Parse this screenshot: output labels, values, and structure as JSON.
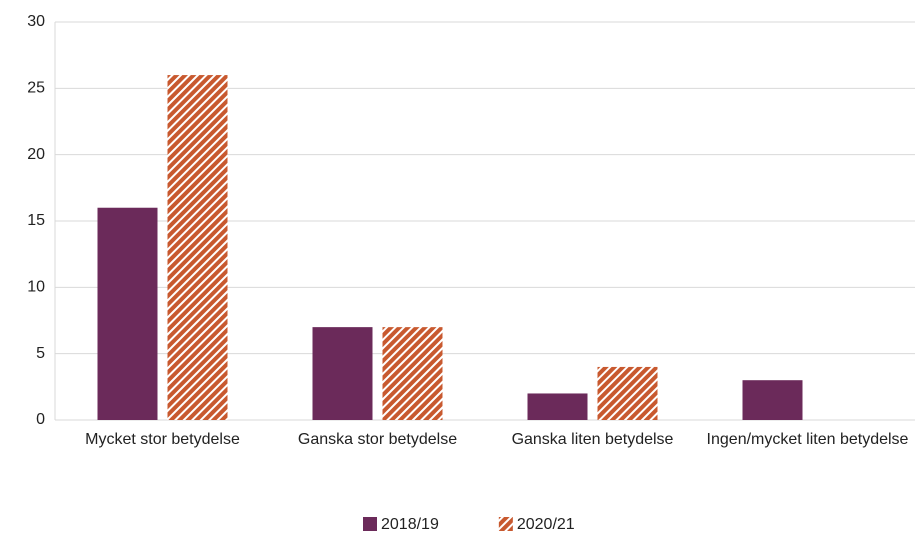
{
  "chart_data": {
    "type": "bar",
    "categories": [
      "Mycket stor betydelse",
      "Ganska stor betydelse",
      "Ganska liten betydelse",
      "Ingen/mycket liten betydelse"
    ],
    "series": [
      {
        "name": "2018/19",
        "color": "#6b2a5a",
        "values": [
          16,
          7,
          2,
          3
        ]
      },
      {
        "name": "2020/21",
        "color": "#c8592f",
        "pattern": "hatch",
        "values": [
          26,
          7,
          4,
          null
        ]
      }
    ],
    "ylim": [
      0,
      30
    ],
    "yticks": [
      0,
      5,
      10,
      15,
      20,
      25,
      30
    ],
    "grid": true,
    "legend": "bottom"
  }
}
